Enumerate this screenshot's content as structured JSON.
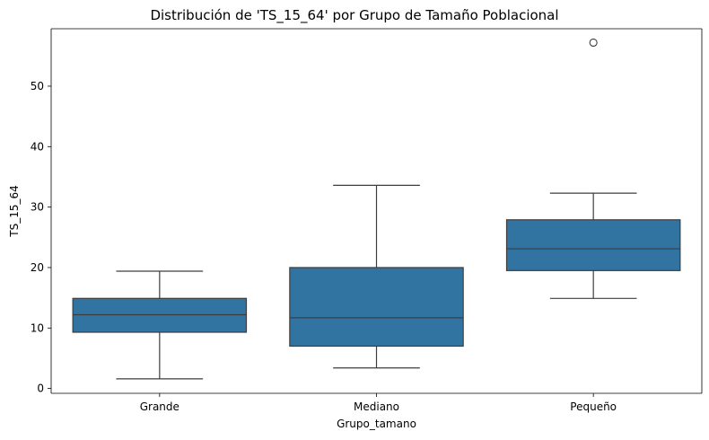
{
  "chart_data": {
    "type": "box",
    "title": "Distribución de 'TS_15_64' por Grupo de Tamaño Poblacional",
    "xlabel": "Grupo_tamano",
    "ylabel": "TS_15_64",
    "categories": [
      "Grande",
      "Mediano",
      "Pequeño"
    ],
    "y_ticks": [
      0,
      10,
      20,
      30,
      40,
      50
    ],
    "ylim": [
      -0.8,
      59.5
    ],
    "grid": false,
    "box_color": "#3274a1",
    "line_color": "#3d3d3d",
    "boxes": [
      {
        "category": "Grande",
        "whisker_low": 1.6,
        "q1": 9.3,
        "median": 12.2,
        "q3": 14.9,
        "whisker_high": 19.4,
        "outliers": []
      },
      {
        "category": "Mediano",
        "whisker_low": 3.4,
        "q1": 7.0,
        "median": 11.7,
        "q3": 20.0,
        "whisker_high": 33.6,
        "outliers": []
      },
      {
        "category": "Pequeño",
        "whisker_low": 14.9,
        "q1": 19.5,
        "median": 23.1,
        "q3": 27.9,
        "whisker_high": 32.3,
        "outliers": [
          57.2
        ]
      }
    ]
  }
}
